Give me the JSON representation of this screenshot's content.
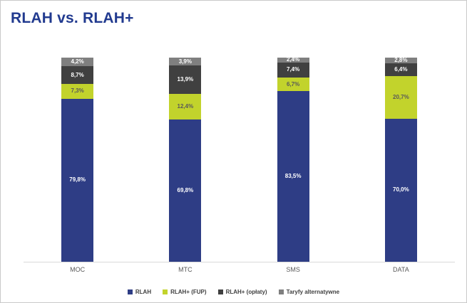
{
  "title": "RLAH vs. RLAH+",
  "colors": {
    "title": "#213a8f",
    "axis_line": "#d9d9d9",
    "category_text": "#595959"
  },
  "chart_data": {
    "type": "bar",
    "stacked": true,
    "percent_stacked": true,
    "title": "RLAH vs. RLAH+",
    "xlabel": "",
    "ylabel": "",
    "ylim": [
      0,
      100
    ],
    "grid": false,
    "legend_position": "bottom",
    "categories": [
      "MOC",
      "MTC",
      "SMS",
      "DATA"
    ],
    "series": [
      {
        "name": "RLAH",
        "color": "#2e3d85",
        "text_color": "#ffffff",
        "values": [
          79.8,
          69.8,
          83.5,
          70.0
        ],
        "labels": [
          "79,8%",
          "69,8%",
          "83,5%",
          "70,0%"
        ]
      },
      {
        "name": "RLAH+ (FUP)",
        "color": "#c2d32c",
        "text_color": "#595959",
        "values": [
          7.3,
          12.4,
          6.7,
          20.7
        ],
        "labels": [
          "7,3%",
          "12,4%",
          "6,7%",
          "20,7%"
        ]
      },
      {
        "name": "RLAH+ (opłaty)",
        "color": "#404040",
        "text_color": "#ffffff",
        "values": [
          8.7,
          13.9,
          7.4,
          6.4
        ],
        "labels": [
          "8,7%",
          "13,9%",
          "7,4%",
          "6,4%"
        ]
      },
      {
        "name": "Taryfy alternatywne",
        "color": "#7f7f7f",
        "text_color": "#ffffff",
        "values": [
          4.2,
          3.9,
          2.4,
          2.8
        ],
        "labels": [
          "4,2%",
          "3,9%",
          "2,4%",
          "2,8%"
        ]
      }
    ]
  }
}
